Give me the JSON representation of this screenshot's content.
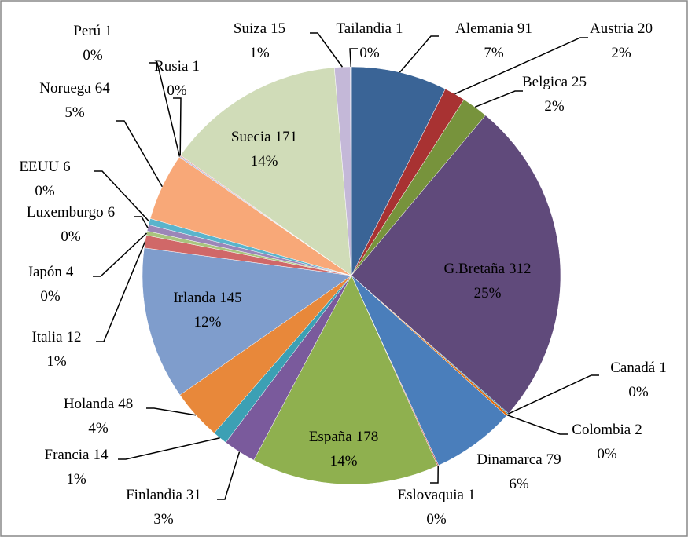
{
  "chart_data": {
    "type": "pie",
    "categories": [
      "Alemania",
      "Austria",
      "Belgica",
      "G.Bretaña",
      "Canadá",
      "Colombia",
      "Dinamarca",
      "Eslovaquia",
      "España",
      "Finlandia",
      "Francia",
      "Holanda",
      "Irlanda",
      "Italia",
      "Japón",
      "Luxemburgo",
      "EEUU",
      "Noruega",
      "Perú",
      "Rusia",
      "Suecia",
      "Suiza",
      "Tailandia"
    ],
    "values": [
      91,
      20,
      25,
      312,
      1,
      2,
      79,
      1,
      178,
      31,
      14,
      48,
      145,
      12,
      4,
      6,
      6,
      64,
      1,
      1,
      171,
      15,
      1
    ],
    "percent_labels": [
      "7%",
      "2%",
      "2%",
      "25%",
      "0%",
      "0%",
      "6%",
      "0%",
      "14%",
      "3%",
      "1%",
      "4%",
      "12%",
      "1%",
      "0%",
      "0%",
      "0%",
      "5%",
      "0%",
      "0%",
      "14%",
      "1%",
      "0%"
    ],
    "colors": [
      "#3a6496",
      "#a83232",
      "#77933c",
      "#604a7b",
      "#31859c",
      "#e46c0a",
      "#4a7ebb",
      "#c0504d",
      "#8fb04f",
      "#7a5a9c",
      "#3ca0b4",
      "#e8883a",
      "#7f9dcc",
      "#d06868",
      "#a9c47e",
      "#9c86b8",
      "#5ab4cc",
      "#f8a878",
      "#a4bce0",
      "#e8a0a0",
      "#d0dcb8",
      "#c4b8d8",
      "#b8dce8"
    ]
  }
}
